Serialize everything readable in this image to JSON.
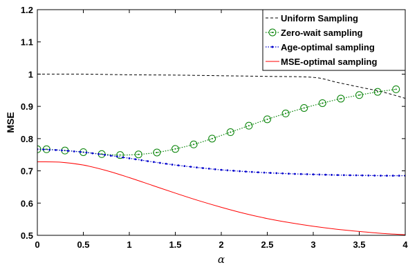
{
  "chart_data": {
    "type": "line",
    "xlabel": "α",
    "ylabel": "MSE",
    "xlim": [
      0,
      4
    ],
    "ylim": [
      0.5,
      1.2
    ],
    "xticks": [
      "0",
      "0.5",
      "1",
      "1.5",
      "2",
      "2.5",
      "3",
      "3.5",
      "4"
    ],
    "yticks": [
      "0.5",
      "0.6",
      "0.7",
      "0.8",
      "0.9",
      "1",
      "1.1",
      "1.2"
    ],
    "grid": false,
    "legend_position": "top-right",
    "series": [
      {
        "name": "Uniform Sampling",
        "color": "#000000",
        "style": "dashed",
        "x": [
          0,
          0.5,
          1.0,
          1.5,
          2.0,
          2.5,
          3.0,
          3.25,
          3.5,
          3.75,
          4.0
        ],
        "y": [
          1.0,
          1.0,
          0.998,
          0.997,
          0.995,
          0.993,
          0.99,
          0.975,
          0.96,
          0.945,
          0.925
        ]
      },
      {
        "name": "Zero-wait sampling",
        "color": "#008000",
        "style": "dotted-circle",
        "x": [
          0,
          0.1,
          0.3,
          0.5,
          0.7,
          0.9,
          1.1,
          1.3,
          1.5,
          1.7,
          1.9,
          2.1,
          2.3,
          2.5,
          2.7,
          2.9,
          3.1,
          3.3,
          3.5,
          3.7,
          3.9
        ],
        "y": [
          0.767,
          0.767,
          0.763,
          0.758,
          0.752,
          0.749,
          0.751,
          0.757,
          0.768,
          0.782,
          0.8,
          0.82,
          0.84,
          0.86,
          0.878,
          0.895,
          0.91,
          0.924,
          0.935,
          0.945,
          0.953
        ]
      },
      {
        "name": "Age-optimal sampling",
        "color": "#0000cc",
        "style": "dotted-point",
        "x": [
          0,
          0.25,
          0.5,
          0.75,
          1.0,
          1.25,
          1.5,
          1.75,
          2.0,
          2.25,
          2.5,
          2.75,
          3.0,
          3.25,
          3.5,
          3.75,
          4.0
        ],
        "y": [
          0.767,
          0.764,
          0.758,
          0.749,
          0.739,
          0.728,
          0.718,
          0.71,
          0.703,
          0.698,
          0.694,
          0.691,
          0.689,
          0.687,
          0.686,
          0.685,
          0.685
        ]
      },
      {
        "name": "MSE-optimal sampling",
        "color": "#ff0000",
        "style": "solid",
        "x": [
          0,
          0.25,
          0.5,
          0.75,
          1.0,
          1.25,
          1.5,
          1.75,
          2.0,
          2.25,
          2.5,
          2.75,
          3.0,
          3.25,
          3.5,
          3.75,
          4.0
        ],
        "y": [
          0.728,
          0.727,
          0.718,
          0.701,
          0.679,
          0.655,
          0.631,
          0.608,
          0.587,
          0.568,
          0.552,
          0.539,
          0.528,
          0.519,
          0.512,
          0.506,
          0.502
        ]
      }
    ]
  }
}
